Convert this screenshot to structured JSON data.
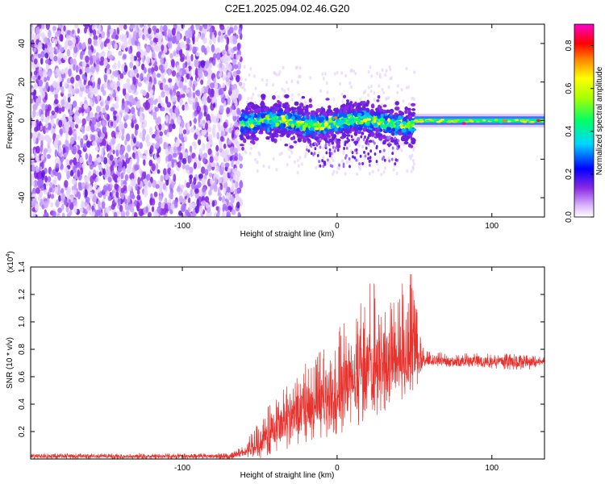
{
  "page_title": "C2E1.2025.094.02.46.G20",
  "chart_data": [
    {
      "type": "heatmap",
      "title": "C2E1.2025.094.02.46.G20",
      "xlabel": "Height of straight line (km)",
      "ylabel": "Frequency (Hz)",
      "xlim": [
        -198,
        134
      ],
      "ylim": [
        -50,
        50
      ],
      "xticks": [
        -100,
        0,
        100
      ],
      "xtick_labels": [
        "-100",
        "0",
        "100"
      ],
      "yticks": [
        -40,
        -20,
        0,
        20,
        40
      ],
      "ytick_labels": [
        "-40",
        "-20",
        "0",
        "20",
        "40"
      ],
      "colorbar": {
        "label": "Normalized spectral amplitude",
        "range": [
          0,
          0.9
        ],
        "ticks": [
          0,
          0.2,
          0.4,
          0.6,
          0.8
        ],
        "tick_labels": [
          "0.0",
          "0.2",
          "0.4",
          "0.6",
          "0.8"
        ],
        "colormap": "rainbow (white-violet-blue-cyan-green-yellow-red-magenta)"
      },
      "regions": [
        {
          "x_range": [
            -198,
            -62
          ],
          "description": "broadband noise, amplitude 0.0-0.2 across all frequencies"
        },
        {
          "x_range": [
            -62,
            50
          ],
          "freq_band_hz": [
            -12,
            8
          ],
          "amplitude": "0.2-0.6, mean near 0 Hz"
        },
        {
          "x_range": [
            50,
            134
          ],
          "freq_band_hz": [
            -3,
            3
          ],
          "amplitude": "0.4-0.9, narrow line at 0 Hz"
        }
      ],
      "grid": false
    },
    {
      "type": "line",
      "xlabel": "Height of straight line (km)",
      "ylabel": "SNR (10 * v/v)",
      "y_multiplier": "(x10",
      "y_exponent": "4",
      "xlim": [
        -198,
        134
      ],
      "ylim": [
        0,
        1.4
      ],
      "xticks": [
        -100,
        0,
        100
      ],
      "xtick_labels": [
        "-100",
        "0",
        "100"
      ],
      "yticks": [
        0.2,
        0.4,
        0.6,
        0.8,
        1.0,
        1.2,
        1.4
      ],
      "ytick_labels": [
        "0.2",
        "0.4",
        "0.6",
        "0.8",
        "1.0",
        "1.2",
        "1.4"
      ],
      "series": [
        {
          "color": "#e8322e",
          "x": [
            -198,
            -150,
            -100,
            -70,
            -60,
            -50,
            -40,
            -30,
            -20,
            -10,
            0,
            10,
            20,
            30,
            40,
            50,
            55,
            60,
            70,
            80,
            90,
            100,
            110,
            120,
            134
          ],
          "y": [
            0.02,
            0.02,
            0.02,
            0.02,
            0.04,
            0.12,
            0.22,
            0.3,
            0.36,
            0.42,
            0.48,
            0.55,
            0.62,
            0.7,
            0.74,
            0.76,
            0.72,
            0.72,
            0.71,
            0.71,
            0.72,
            0.71,
            0.71,
            0.7,
            0.71
          ],
          "envelope_max": [
            0.04,
            0.04,
            0.04,
            0.04,
            0.1,
            0.3,
            0.45,
            0.6,
            0.7,
            0.8,
            0.95,
            1.08,
            1.3,
            1.3,
            1.25,
            1.4,
            0.82,
            0.78,
            0.78,
            0.77,
            0.78,
            0.77,
            0.79,
            0.76,
            0.75
          ],
          "envelope_min": [
            0.0,
            0.0,
            0.0,
            0.0,
            0.0,
            0.0,
            0.05,
            0.08,
            0.12,
            0.15,
            0.18,
            0.22,
            0.28,
            0.34,
            0.42,
            0.46,
            0.66,
            0.68,
            0.67,
            0.67,
            0.67,
            0.66,
            0.64,
            0.64,
            0.68
          ]
        }
      ],
      "grid": false
    }
  ]
}
